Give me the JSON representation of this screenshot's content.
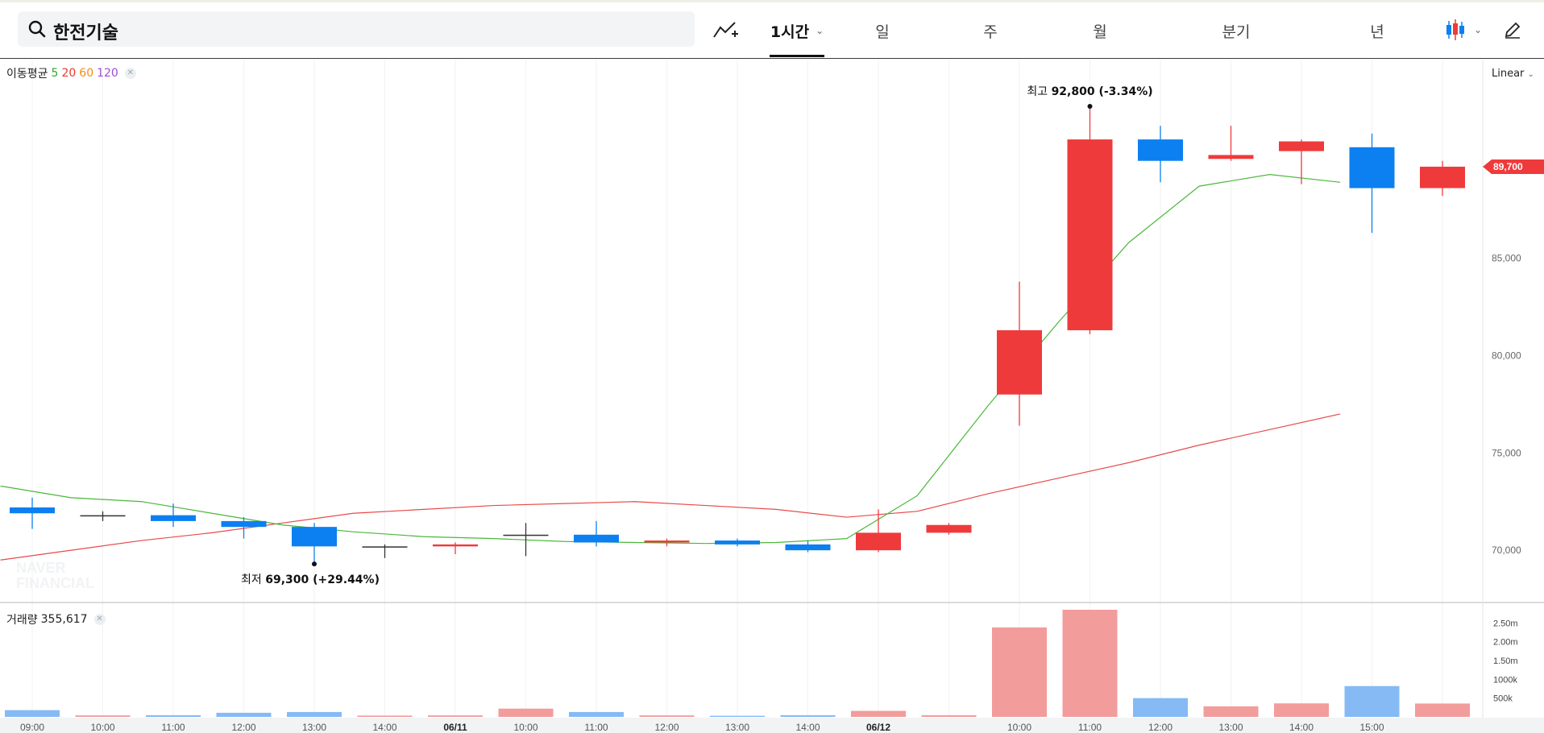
{
  "search": {
    "query": "한전기술"
  },
  "toolbar": {
    "indicator_icon": "trend-add-icon",
    "period_tabs": [
      {
        "label": "1시간",
        "active": true
      },
      {
        "label": "일"
      },
      {
        "label": "주"
      },
      {
        "label": "월"
      },
      {
        "label": "분기"
      },
      {
        "label": "년"
      }
    ],
    "chart_type_icon": "candlestick-icon",
    "draw_icon": "pencil-icon"
  },
  "ma_legend": {
    "label": "이동평균",
    "periods": [
      "5",
      "20",
      "60",
      "120"
    ],
    "colors": [
      "#2ea82e",
      "#e8392f",
      "#f08c1a",
      "#9b4dd6"
    ]
  },
  "scale_mode": "Linear",
  "annotations": {
    "high": {
      "prefix": "최고",
      "value": "92,800 (-3.34%)"
    },
    "low": {
      "prefix": "최저",
      "value": "69,300 (+29.44%)"
    }
  },
  "current_price_label": "89,700",
  "volume_legend": {
    "label": "거래량",
    "value": "355,617"
  },
  "watermark": [
    "NAVER",
    "FINANCIAL"
  ],
  "colors": {
    "up": "#ef3a3b",
    "down": "#0c80f0",
    "flat": "#333333",
    "ma5": "#4ab83a",
    "ma20": "#e84a4a",
    "vol_up": "#f29c9c",
    "vol_down": "#86baf4"
  },
  "chart_data": {
    "type": "candlestick",
    "x_labels": [
      "09:00",
      "10:00",
      "11:00",
      "12:00",
      "13:00",
      "14:00",
      "06/11",
      "10:00",
      "11:00",
      "12:00",
      "13:00",
      "14:00",
      "06/12",
      "10:00",
      "11:00",
      "12:00",
      "13:00",
      "14:00",
      "15:00"
    ],
    "y_ticks": [
      "70,000",
      "75,000",
      "80,000",
      "85,000"
    ],
    "y_tick_values": [
      70000,
      75000,
      80000,
      85000
    ],
    "volume_ticks": [
      "500k",
      "1000k",
      "1.50m",
      "2.00m",
      "2.50m"
    ],
    "volume_tick_values": [
      500000,
      1000000,
      1500000,
      2000000,
      2500000
    ],
    "ylim": [
      67400,
      95200
    ],
    "volume_ylim": [
      0,
      3000000
    ],
    "candles": [
      {
        "o": 72200,
        "h": 72700,
        "l": 71100,
        "c": 71900,
        "v": 180000
      },
      {
        "o": 71800,
        "h": 72000,
        "l": 71500,
        "c": 71800,
        "v": 40000
      },
      {
        "o": 71800,
        "h": 72400,
        "l": 71200,
        "c": 71500,
        "v": 45000
      },
      {
        "o": 71500,
        "h": 71700,
        "l": 70600,
        "c": 71200,
        "v": 110000
      },
      {
        "o": 71200,
        "h": 71400,
        "l": 69300,
        "c": 70200,
        "v": 130000
      },
      {
        "o": 70200,
        "h": 70300,
        "l": 69600,
        "c": 70200,
        "v": 35000
      },
      {
        "o": 70200,
        "h": 70400,
        "l": 69800,
        "c": 70300,
        "v": 40000
      },
      {
        "o": 70800,
        "h": 71400,
        "l": 69700,
        "c": 70800,
        "v": 220000
      },
      {
        "o": 70800,
        "h": 71500,
        "l": 70200,
        "c": 70400,
        "v": 130000
      },
      {
        "o": 70400,
        "h": 70600,
        "l": 70200,
        "c": 70500,
        "v": 40000
      },
      {
        "o": 70500,
        "h": 70600,
        "l": 70200,
        "c": 70300,
        "v": 30000
      },
      {
        "o": 70300,
        "h": 70500,
        "l": 69900,
        "c": 70000,
        "v": 45000
      },
      {
        "o": 70000,
        "h": 72100,
        "l": 69900,
        "c": 70900,
        "v": 160000
      },
      {
        "o": 70900,
        "h": 71400,
        "l": 70800,
        "c": 71300,
        "v": 45000
      },
      {
        "o": 78000,
        "h": 83800,
        "l": 76400,
        "c": 81300,
        "v": 2380000
      },
      {
        "o": 81300,
        "h": 92800,
        "l": 81100,
        "c": 91100,
        "v": 2850000
      },
      {
        "o": 91100,
        "h": 91800,
        "l": 88900,
        "c": 90000,
        "v": 500000
      },
      {
        "o": 90100,
        "h": 91800,
        "l": 90000,
        "c": 90300,
        "v": 280000
      },
      {
        "o": 90500,
        "h": 91100,
        "l": 88800,
        "c": 91000,
        "v": 360000
      },
      {
        "o": 90700,
        "h": 91400,
        "l": 86300,
        "c": 88600,
        "v": 820000
      },
      {
        "o": 88600,
        "h": 90000,
        "l": 88200,
        "c": 89700,
        "v": 355617
      }
    ],
    "ma5": [
      73300,
      72700,
      72500,
      71900,
      71300,
      70950,
      70700,
      70600,
      70450,
      70400,
      70350,
      70400,
      70600,
      72800,
      77400,
      81700,
      85800,
      88700,
      89300,
      88900
    ],
    "ma20": [
      69500,
      70000,
      70500,
      70900,
      71400,
      71900,
      72100,
      72300,
      72400,
      72500,
      72300,
      72100,
      71700,
      72000,
      72900,
      73700,
      74500,
      75400,
      76200,
      77000
    ]
  }
}
